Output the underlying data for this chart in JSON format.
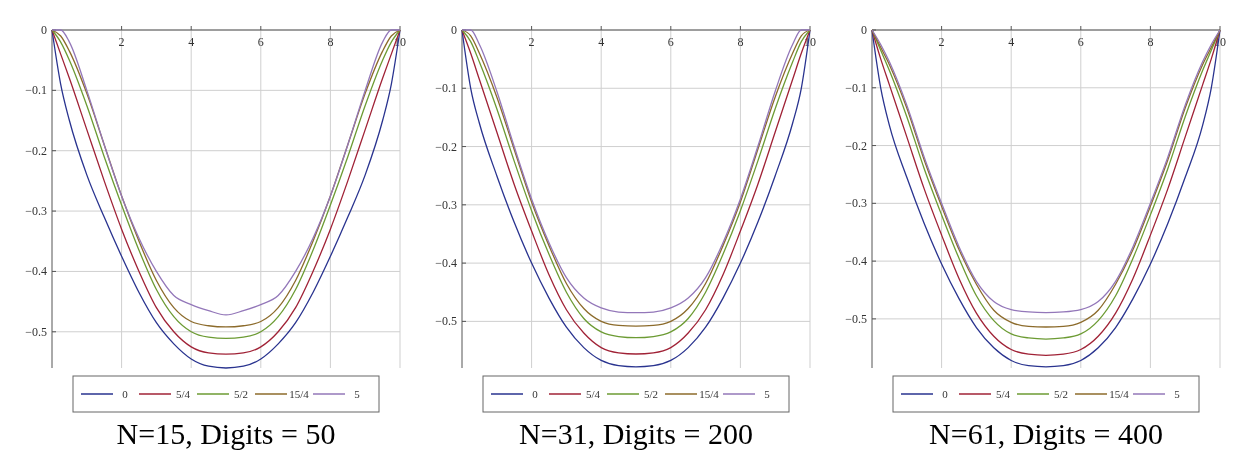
{
  "chart_data": [
    {
      "type": "line",
      "title": "N=15, Digits = 50",
      "x": [
        0,
        0.25,
        0.5,
        1,
        1.5,
        2,
        2.5,
        3,
        3.5,
        4,
        4.5,
        5,
        5.5,
        6,
        6.5,
        7,
        7.5,
        8,
        8.5,
        9,
        9.5,
        9.75,
        10
      ],
      "xlim": [
        0,
        10
      ],
      "ylim": [
        -0.56,
        0
      ],
      "xticks": [
        2,
        4,
        6,
        8,
        10
      ],
      "yticks": [
        0,
        -0.1,
        -0.2,
        -0.3,
        -0.4,
        -0.5
      ],
      "grid": true,
      "legend": "bottom",
      "series": [
        {
          "name": "0",
          "color": "#29338f",
          "values": [
            0,
            -0.09,
            -0.15,
            -0.24,
            -0.31,
            -0.375,
            -0.435,
            -0.485,
            -0.52,
            -0.545,
            -0.557,
            -0.56,
            -0.557,
            -0.545,
            -0.52,
            -0.485,
            -0.435,
            -0.375,
            -0.31,
            -0.24,
            -0.15,
            -0.09,
            0
          ]
        },
        {
          "name": "5/4",
          "color": "#a02236",
          "values": [
            0,
            -0.04,
            -0.08,
            -0.165,
            -0.25,
            -0.33,
            -0.4,
            -0.46,
            -0.5,
            -0.525,
            -0.535,
            -0.537,
            -0.535,
            -0.525,
            -0.5,
            -0.46,
            -0.4,
            -0.33,
            -0.25,
            -0.165,
            -0.08,
            -0.04,
            0
          ]
        },
        {
          "name": "5/2",
          "color": "#6c9b33",
          "values": [
            0,
            -0.02,
            -0.05,
            -0.125,
            -0.21,
            -0.29,
            -0.365,
            -0.43,
            -0.475,
            -0.5,
            -0.509,
            -0.511,
            -0.509,
            -0.5,
            -0.475,
            -0.43,
            -0.365,
            -0.29,
            -0.21,
            -0.125,
            -0.05,
            -0.02,
            0
          ]
        },
        {
          "name": "15/4",
          "color": "#8c6b2b",
          "values": [
            0,
            -0.01,
            -0.035,
            -0.105,
            -0.19,
            -0.275,
            -0.35,
            -0.415,
            -0.46,
            -0.483,
            -0.49,
            -0.492,
            -0.49,
            -0.483,
            -0.46,
            -0.415,
            -0.35,
            -0.275,
            -0.19,
            -0.105,
            -0.035,
            -0.01,
            0
          ]
        },
        {
          "name": "5",
          "color": "#9377b9",
          "values": [
            0,
            0,
            -0.02,
            -0.1,
            -0.19,
            -0.275,
            -0.345,
            -0.4,
            -0.44,
            -0.455,
            -0.465,
            -0.472,
            -0.465,
            -0.455,
            -0.44,
            -0.4,
            -0.345,
            -0.275,
            -0.19,
            -0.1,
            -0.02,
            0,
            0
          ]
        }
      ]
    },
    {
      "type": "line",
      "title": "N=31, Digits = 200",
      "x": [
        0,
        0.25,
        0.5,
        1,
        1.5,
        2,
        2.5,
        3,
        3.5,
        4,
        4.5,
        5,
        5.5,
        6,
        6.5,
        7,
        7.5,
        8,
        8.5,
        9,
        9.5,
        9.75,
        10
      ],
      "xlim": [
        0,
        10
      ],
      "ylim": [
        -0.58,
        0
      ],
      "xticks": [
        2,
        4,
        6,
        8,
        10
      ],
      "yticks": [
        0,
        -0.1,
        -0.2,
        -0.3,
        -0.4,
        -0.5
      ],
      "grid": true,
      "legend": "bottom",
      "series": [
        {
          "name": "0",
          "color": "#29338f",
          "values": [
            0,
            -0.1,
            -0.16,
            -0.25,
            -0.33,
            -0.4,
            -0.46,
            -0.51,
            -0.545,
            -0.567,
            -0.576,
            -0.578,
            -0.576,
            -0.567,
            -0.545,
            -0.51,
            -0.46,
            -0.4,
            -0.33,
            -0.25,
            -0.16,
            -0.1,
            0
          ]
        },
        {
          "name": "5/4",
          "color": "#a02236",
          "values": [
            0,
            -0.04,
            -0.085,
            -0.175,
            -0.265,
            -0.345,
            -0.42,
            -0.48,
            -0.52,
            -0.545,
            -0.554,
            -0.556,
            -0.554,
            -0.545,
            -0.52,
            -0.48,
            -0.42,
            -0.345,
            -0.265,
            -0.175,
            -0.085,
            -0.04,
            0
          ]
        },
        {
          "name": "5/2",
          "color": "#6c9b33",
          "values": [
            0,
            -0.02,
            -0.055,
            -0.135,
            -0.225,
            -0.31,
            -0.385,
            -0.45,
            -0.495,
            -0.518,
            -0.526,
            -0.528,
            -0.526,
            -0.518,
            -0.495,
            -0.45,
            -0.385,
            -0.31,
            -0.225,
            -0.135,
            -0.055,
            -0.02,
            0
          ]
        },
        {
          "name": "15/4",
          "color": "#8c6b2b",
          "values": [
            0,
            -0.01,
            -0.04,
            -0.115,
            -0.205,
            -0.295,
            -0.37,
            -0.435,
            -0.478,
            -0.5,
            -0.507,
            -0.508,
            -0.507,
            -0.5,
            -0.478,
            -0.435,
            -0.37,
            -0.295,
            -0.205,
            -0.115,
            -0.04,
            -0.01,
            0
          ]
        },
        {
          "name": "5",
          "color": "#9377b9",
          "values": [
            0,
            0,
            -0.025,
            -0.105,
            -0.2,
            -0.29,
            -0.365,
            -0.425,
            -0.46,
            -0.477,
            -0.484,
            -0.485,
            -0.484,
            -0.477,
            -0.46,
            -0.425,
            -0.365,
            -0.29,
            -0.2,
            -0.105,
            -0.025,
            0,
            0
          ]
        }
      ]
    },
    {
      "type": "line",
      "title": "N=61, Digits = 400",
      "x": [
        0,
        0.25,
        0.5,
        1,
        1.5,
        2,
        2.5,
        3,
        3.5,
        4,
        4.5,
        5,
        5.5,
        6,
        6.5,
        7,
        7.5,
        8,
        8.5,
        9,
        9.5,
        9.75,
        10
      ],
      "xlim": [
        0,
        10
      ],
      "ylim": [
        -0.585,
        0
      ],
      "xticks": [
        2,
        4,
        6,
        8,
        10
      ],
      "yticks": [
        0,
        -0.1,
        -0.2,
        -0.3,
        -0.4,
        -0.5
      ],
      "grid": true,
      "legend": "bottom",
      "series": [
        {
          "name": "0",
          "color": "#29338f",
          "values": [
            0,
            -0.1,
            -0.165,
            -0.255,
            -0.335,
            -0.405,
            -0.465,
            -0.515,
            -0.55,
            -0.572,
            -0.581,
            -0.583,
            -0.581,
            -0.572,
            -0.55,
            -0.515,
            -0.465,
            -0.405,
            -0.335,
            -0.255,
            -0.165,
            -0.1,
            0
          ]
        },
        {
          "name": "5/4",
          "color": "#a02236",
          "values": [
            0,
            -0.05,
            -0.095,
            -0.185,
            -0.275,
            -0.355,
            -0.43,
            -0.49,
            -0.53,
            -0.553,
            -0.561,
            -0.563,
            -0.561,
            -0.553,
            -0.53,
            -0.49,
            -0.43,
            -0.355,
            -0.275,
            -0.185,
            -0.095,
            -0.05,
            0
          ]
        },
        {
          "name": "5/2",
          "color": "#6c9b33",
          "values": [
            0,
            -0.035,
            -0.07,
            -0.15,
            -0.24,
            -0.32,
            -0.395,
            -0.46,
            -0.503,
            -0.526,
            -0.533,
            -0.535,
            -0.533,
            -0.526,
            -0.503,
            -0.46,
            -0.395,
            -0.32,
            -0.24,
            -0.15,
            -0.07,
            -0.035,
            0
          ]
        },
        {
          "name": "15/4",
          "color": "#8c6b2b",
          "values": [
            0,
            -0.03,
            -0.06,
            -0.135,
            -0.225,
            -0.305,
            -0.38,
            -0.44,
            -0.485,
            -0.506,
            -0.513,
            -0.514,
            -0.513,
            -0.506,
            -0.485,
            -0.44,
            -0.38,
            -0.305,
            -0.225,
            -0.135,
            -0.06,
            -0.03,
            0
          ]
        },
        {
          "name": "5",
          "color": "#9377b9",
          "values": [
            0,
            -0.025,
            -0.055,
            -0.13,
            -0.22,
            -0.3,
            -0.375,
            -0.435,
            -0.47,
            -0.484,
            -0.488,
            -0.489,
            -0.488,
            -0.484,
            -0.47,
            -0.435,
            -0.375,
            -0.3,
            -0.22,
            -0.13,
            -0.055,
            -0.025,
            0
          ]
        }
      ]
    }
  ]
}
